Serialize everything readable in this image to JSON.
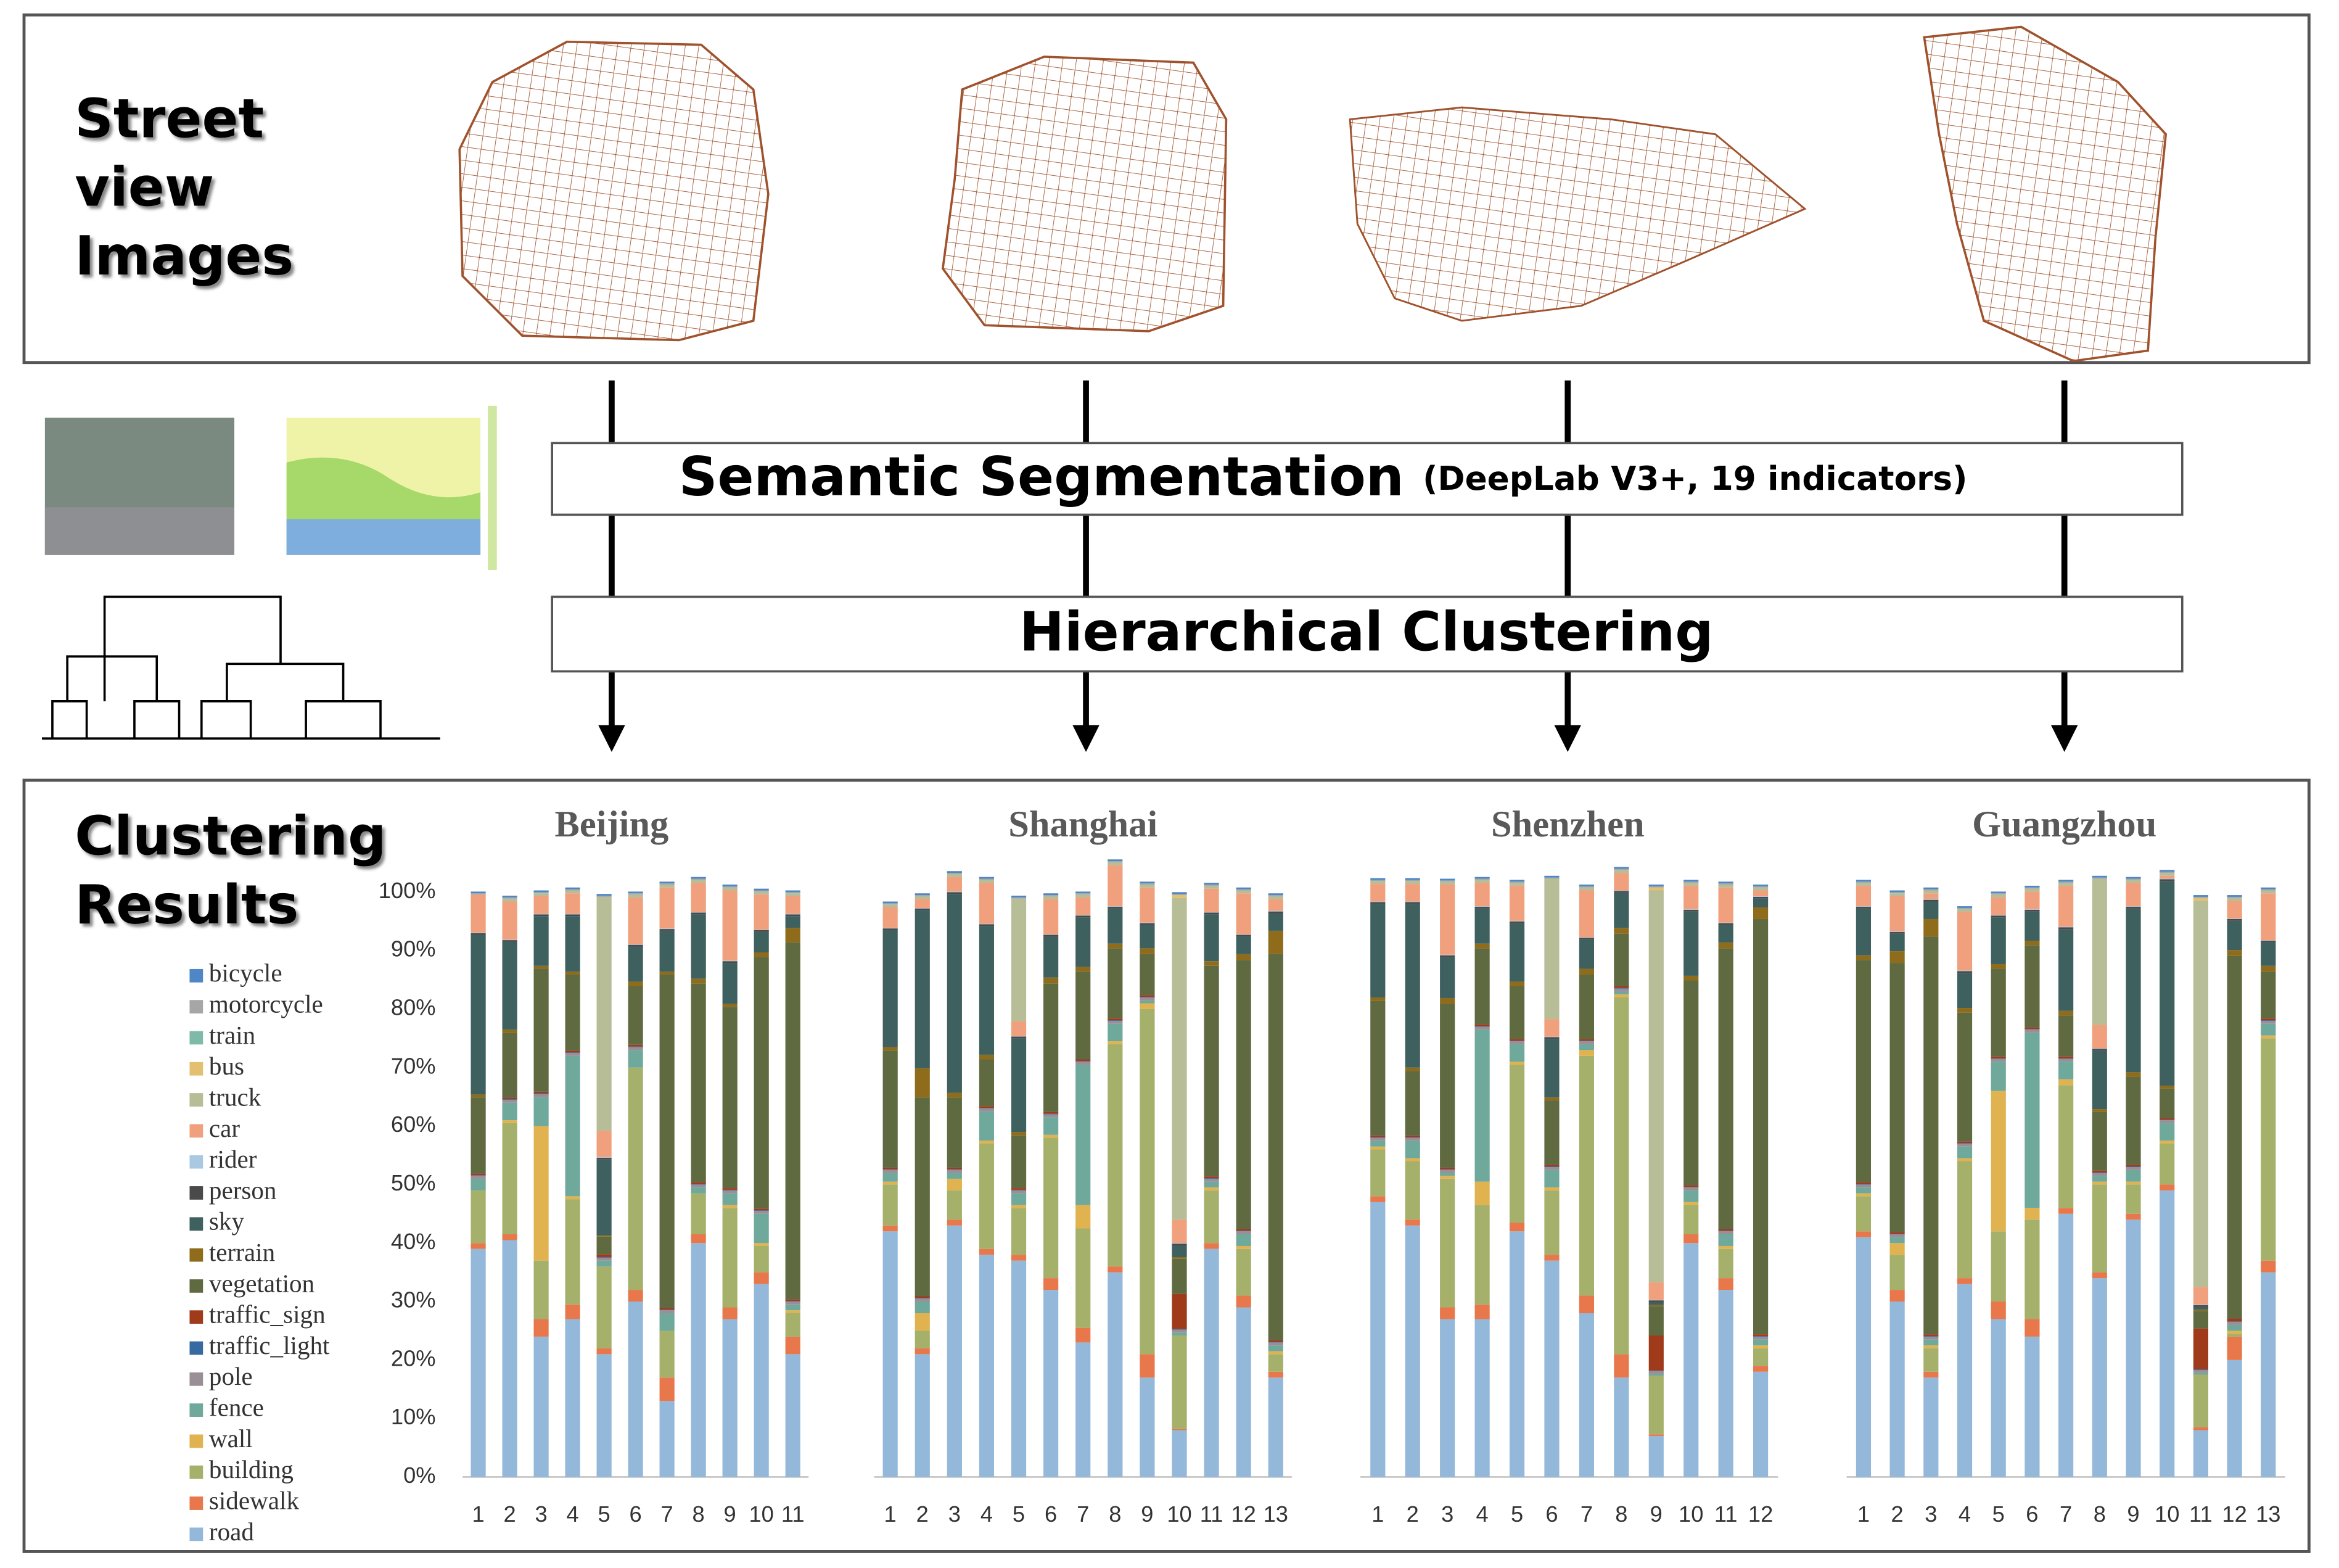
{
  "header": {
    "title": [
      "Street",
      "view",
      "Images"
    ]
  },
  "steps": [
    {
      "label": "Semantic Segmentation",
      "note": "(DeepLab V3+,  19 indicators)"
    },
    {
      "label": "Hierarchical Clustering"
    }
  ],
  "results": {
    "title": [
      "Clustering",
      "Results"
    ]
  },
  "legend": [
    {
      "name": "bicycle",
      "color": "#4f86c6"
    },
    {
      "name": "motorcycle",
      "color": "#a6a6a6"
    },
    {
      "name": "train",
      "color": "#7fb9a8"
    },
    {
      "name": "bus",
      "color": "#e3c06f"
    },
    {
      "name": "truck",
      "color": "#b6bd97"
    },
    {
      "name": "car",
      "color": "#f0a07c"
    },
    {
      "name": "rider",
      "color": "#a9c9e2"
    },
    {
      "name": "person",
      "color": "#4a4a4a"
    },
    {
      "name": "sky",
      "color": "#3e605f"
    },
    {
      "name": "terrain",
      "color": "#8e6c1c"
    },
    {
      "name": "vegetation",
      "color": "#5f6a40"
    },
    {
      "name": "traffic_sign",
      "color": "#9f3b1b"
    },
    {
      "name": "traffic_light",
      "color": "#366aa0"
    },
    {
      "name": "pole",
      "color": "#9a8f96"
    },
    {
      "name": "fence",
      "color": "#6fa99b"
    },
    {
      "name": "wall",
      "color": "#e1b350"
    },
    {
      "name": "building",
      "color": "#a5b06b"
    },
    {
      "name": "sidewalk",
      "color": "#e8784b"
    },
    {
      "name": "road",
      "color": "#94b8d9"
    }
  ],
  "yaxis": {
    "ylim": [
      0,
      100
    ],
    "yticks": [
      {
        "value": 0,
        "label": "0%"
      },
      {
        "value": 10,
        "label": "10%"
      },
      {
        "value": 20,
        "label": "20%"
      },
      {
        "value": 30,
        "label": "30%"
      },
      {
        "value": 40,
        "label": "40%"
      },
      {
        "value": 50,
        "label": "50%"
      },
      {
        "value": 60,
        "label": "60%"
      },
      {
        "value": 70,
        "label": "70%"
      },
      {
        "value": 80,
        "label": "80%"
      },
      {
        "value": 90,
        "label": "90%"
      },
      {
        "value": 100,
        "label": "100%"
      }
    ]
  },
  "chart_data": [
    {
      "type": "stacked_bar",
      "title": "Beijing",
      "categories": [
        "1",
        "2",
        "3",
        "4",
        "5",
        "6",
        "7",
        "8",
        "9",
        "10",
        "11"
      ],
      "stacks": [
        [
          0.3,
          0.2,
          0,
          0,
          0,
          6.5,
          0.1,
          0.3,
          27.3,
          0.5,
          13,
          0.3,
          0.1,
          0.5,
          2,
          0,
          9,
          1,
          39
        ],
        [
          0.3,
          0.2,
          0,
          0,
          0.5,
          6.5,
          0.1,
          0.3,
          15,
          0.6,
          11,
          0.3,
          0.1,
          0.5,
          3,
          0.5,
          19,
          1,
          40.5
        ],
        [
          0.3,
          0.2,
          0,
          0,
          0.5,
          3,
          0.1,
          0.3,
          8.5,
          0.5,
          21,
          0.3,
          0.1,
          0.5,
          5,
          23,
          10,
          3,
          24
        ],
        [
          0.3,
          0.2,
          0,
          0,
          0.5,
          3.5,
          0.1,
          0.3,
          9.5,
          0.5,
          13,
          0.3,
          0.1,
          0.5,
          24,
          0.5,
          18,
          2.5,
          27
        ],
        [
          0.3,
          0.2,
          0,
          0,
          40,
          4.5,
          0.1,
          0.3,
          13,
          0.2,
          3,
          0.5,
          0.1,
          0.5,
          1,
          0,
          14,
          1,
          21
        ],
        [
          0.3,
          0.2,
          0,
          0,
          0.5,
          8,
          0.1,
          0.3,
          6,
          0.8,
          10,
          0.3,
          0.1,
          0.5,
          3,
          0,
          38,
          2,
          30
        ],
        [
          0.3,
          0.2,
          0,
          0,
          0.5,
          7,
          0.1,
          0.3,
          7,
          0.5,
          57,
          0.3,
          0.1,
          0.5,
          3,
          0,
          8,
          4,
          13
        ],
        [
          0.3,
          0.2,
          0,
          0,
          0.5,
          5,
          0.1,
          0.3,
          11,
          0.8,
          34,
          0.3,
          0.1,
          0.5,
          1,
          0,
          7,
          1.5,
          40
        ],
        [
          0.3,
          0.2,
          0,
          0,
          0.5,
          12,
          0.1,
          0.3,
          7,
          0.5,
          31,
          0.3,
          0.1,
          0.5,
          2,
          0.5,
          17,
          2,
          27
        ],
        [
          0.3,
          0.2,
          0,
          0,
          0.5,
          6,
          0.1,
          0.3,
          3.5,
          0.8,
          43,
          0.3,
          0.1,
          0.5,
          5,
          0.5,
          4.5,
          2,
          33
        ],
        [
          0.3,
          0.2,
          0,
          0,
          0.5,
          3,
          0.1,
          0.3,
          2,
          2.5,
          61,
          0.3,
          0.1,
          0.5,
          1,
          0.5,
          4,
          3,
          21
        ]
      ]
    },
    {
      "type": "stacked_bar",
      "title": "Shanghai",
      "categories": [
        "1",
        "2",
        "3",
        "4",
        "5",
        "6",
        "7",
        "8",
        "9",
        "10",
        "11",
        "12",
        "13"
      ],
      "stacks": [
        [
          0.3,
          0.2,
          0,
          0,
          0.5,
          3.5,
          0.1,
          0.3,
          20,
          0.6,
          20,
          0.3,
          0.1,
          0.5,
          1.5,
          0.5,
          7,
          1,
          42
        ],
        [
          0.3,
          0.2,
          0,
          0,
          0.5,
          1.5,
          0.1,
          0.3,
          27,
          5,
          34,
          0.3,
          0.1,
          0.5,
          2,
          3,
          3,
          1,
          21
        ],
        [
          0.3,
          0.2,
          0,
          0,
          0.5,
          2.5,
          0.1,
          0.3,
          34,
          0.8,
          12,
          0.3,
          0.1,
          0.5,
          1,
          2,
          5,
          1,
          43
        ],
        [
          0.3,
          0.2,
          0,
          0,
          0.5,
          7,
          0.1,
          0.3,
          22,
          0.8,
          8,
          0.3,
          0.1,
          0.5,
          5,
          0.5,
          18,
          1,
          38
        ],
        [
          0.3,
          0.2,
          0,
          0,
          21,
          2.5,
          0.1,
          0.3,
          16,
          0.6,
          9,
          0.3,
          0.1,
          0.5,
          2,
          0.5,
          8,
          1,
          37
        ],
        [
          0.3,
          0.2,
          0,
          0,
          0.5,
          6,
          0.1,
          0.3,
          7,
          1,
          22,
          0.3,
          0.1,
          0.5,
          3,
          0.5,
          24,
          2,
          32
        ],
        [
          0.3,
          0.2,
          0,
          0,
          0.5,
          3,
          0.1,
          0.3,
          8.5,
          0.8,
          15,
          0.3,
          0.1,
          0.5,
          24,
          4,
          17,
          2.5,
          23
        ],
        [
          0.3,
          0.2,
          0,
          0,
          0.5,
          7,
          0.1,
          0.3,
          6,
          0.8,
          12,
          0.3,
          0.1,
          0.5,
          3,
          0.5,
          38,
          1,
          35
        ],
        [
          0.3,
          0.2,
          0,
          0,
          0.5,
          6,
          0.1,
          0.3,
          4,
          1,
          7,
          0.3,
          0.1,
          0.5,
          0.5,
          1,
          59,
          4,
          17
        ],
        [
          0.3,
          0.2,
          0,
          0.5,
          55,
          4,
          0.1,
          0.3,
          2,
          0.3,
          6,
          6,
          0.1,
          0.5,
          0.5,
          0,
          16,
          0.2,
          8
        ],
        [
          0.3,
          0.2,
          0,
          0,
          0.5,
          4,
          0.1,
          0.3,
          8,
          0.8,
          36,
          0.3,
          0.1,
          0.5,
          1,
          0.5,
          9,
          1,
          39
        ],
        [
          0.3,
          0.2,
          0,
          0,
          0.5,
          7,
          0.1,
          0.3,
          3,
          1,
          46,
          0.3,
          0.1,
          0.5,
          2,
          0.5,
          8,
          2,
          29
        ],
        [
          0.3,
          0.2,
          0,
          0,
          0.5,
          2,
          0.1,
          0.3,
          3,
          4,
          66,
          0.3,
          0.1,
          0.5,
          1,
          0.5,
          3,
          1,
          17
        ]
      ]
    },
    {
      "type": "stacked_bar",
      "title": "Shenzhen",
      "categories": [
        "1",
        "2",
        "3",
        "4",
        "5",
        "6",
        "7",
        "8",
        "9",
        "10",
        "11",
        "12"
      ],
      "stacks": [
        [
          0.3,
          0.2,
          0,
          0,
          0.5,
          3,
          0.1,
          0.3,
          16,
          0.6,
          23,
          0.3,
          0.1,
          0.5,
          1,
          0.5,
          8,
          1,
          47
        ],
        [
          0.3,
          0.2,
          0,
          0,
          0.5,
          3,
          0.1,
          0.3,
          28,
          0.6,
          11,
          0.3,
          0.1,
          0.5,
          3,
          0.5,
          10,
          1,
          43
        ],
        [
          0.3,
          0.2,
          0,
          0,
          0.5,
          12,
          0.1,
          0.3,
          7,
          1,
          28,
          0.3,
          0.1,
          0.5,
          0.5,
          0.5,
          22,
          2,
          27
        ],
        [
          0.3,
          0.2,
          0,
          0,
          0.5,
          4,
          0.1,
          0.3,
          6,
          0.8,
          13,
          0.3,
          0.1,
          0.5,
          26,
          4,
          17,
          2.5,
          27
        ],
        [
          0.3,
          0.2,
          0,
          0,
          0.5,
          6,
          0.1,
          0.3,
          10,
          0.8,
          9,
          0.3,
          0.1,
          0.5,
          3,
          0.5,
          27,
          1.5,
          42
        ],
        [
          0.3,
          0.2,
          0,
          0,
          24,
          3,
          0.1,
          0.3,
          10,
          0.5,
          11,
          0.3,
          0.1,
          0.5,
          3,
          0.5,
          11,
          1,
          37
        ],
        [
          0.3,
          0.2,
          0,
          0,
          0.5,
          8,
          0.1,
          0.3,
          5,
          1,
          11,
          0.3,
          0.1,
          0.5,
          1,
          1,
          41,
          3,
          28
        ],
        [
          0.3,
          0.2,
          0,
          0,
          0.5,
          3,
          0.1,
          0.3,
          6,
          1,
          9,
          0.3,
          0.1,
          0.5,
          0.5,
          0.5,
          61,
          4,
          17
        ],
        [
          0.3,
          0.2,
          0,
          0.5,
          67,
          3,
          0.1,
          0.3,
          0.5,
          0.2,
          5,
          6,
          0.1,
          0.5,
          0.3,
          0,
          10,
          0.3,
          7
        ],
        [
          0.3,
          0.2,
          0,
          0,
          0.5,
          4,
          0.1,
          0.3,
          11,
          0.8,
          35,
          0.3,
          0.1,
          0.5,
          2,
          0.5,
          5,
          1.5,
          40
        ],
        [
          0.3,
          0.2,
          0,
          0,
          0.5,
          6,
          0.1,
          0.3,
          3,
          1,
          48,
          0.3,
          0.1,
          0.5,
          2,
          0.5,
          5,
          2,
          32
        ],
        [
          0.3,
          0.2,
          0,
          0,
          0.5,
          1,
          0.1,
          0.3,
          1.5,
          2,
          71,
          0.3,
          0.1,
          0.5,
          1,
          0.5,
          3,
          1,
          18
        ]
      ]
    },
    {
      "type": "stacked_bar",
      "title": "Guangzhou",
      "categories": [
        "1",
        "2",
        "3",
        "4",
        "5",
        "6",
        "7",
        "8",
        "9",
        "10",
        "11",
        "12",
        "13"
      ],
      "stacks": [
        [
          0.3,
          0.2,
          0,
          0,
          0.5,
          3.5,
          0.1,
          0.3,
          8,
          0.8,
          38,
          0.3,
          0.1,
          0.5,
          1,
          0.5,
          6,
          1,
          41
        ],
        [
          0.3,
          0.2,
          0,
          0,
          0.5,
          6,
          0.1,
          0.3,
          3,
          2,
          46,
          0.3,
          0.1,
          0.5,
          1,
          2,
          6,
          2,
          30
        ],
        [
          0.3,
          0.2,
          0,
          0,
          0.5,
          1,
          0.1,
          0.3,
          3,
          3,
          68,
          0.3,
          0.1,
          0.5,
          1,
          0.5,
          4,
          1,
          17
        ],
        [
          0.3,
          0.2,
          0,
          0,
          0.5,
          10,
          0.1,
          0.3,
          6,
          0.8,
          22,
          0.3,
          0.1,
          0.5,
          2,
          0.5,
          20,
          1,
          33
        ],
        [
          0.3,
          0.2,
          0,
          0,
          0.5,
          3,
          0.1,
          0.3,
          8,
          0.8,
          15,
          0.3,
          0.1,
          0.5,
          5,
          24,
          12,
          3,
          27
        ],
        [
          0.3,
          0.2,
          0,
          0,
          0.5,
          3,
          0.1,
          0.3,
          5,
          0.8,
          14,
          0.3,
          0.1,
          0.5,
          30,
          2,
          17,
          3,
          24
        ],
        [
          0.3,
          0.2,
          0,
          0,
          0.5,
          7,
          0.1,
          0.3,
          14,
          0.8,
          7,
          0.3,
          0.1,
          0.5,
          3,
          1,
          21,
          1,
          45
        ],
        [
          0.3,
          0.2,
          0,
          0,
          25,
          4,
          0.1,
          0.3,
          10,
          0.5,
          10,
          0.3,
          0.1,
          0.5,
          1,
          0.5,
          15,
          1,
          34
        ],
        [
          0.3,
          0.2,
          0,
          0,
          0.5,
          4,
          0.1,
          0.3,
          28,
          0.8,
          15,
          0.3,
          0.1,
          0.5,
          2,
          0.5,
          5,
          1,
          44
        ],
        [
          0.3,
          0.2,
          0,
          0,
          0.5,
          0.5,
          0.1,
          0.3,
          35,
          0.5,
          5,
          0.3,
          0.1,
          0.5,
          3,
          0.5,
          7,
          1,
          49
        ],
        [
          0.3,
          0.2,
          0,
          0.5,
          66,
          3,
          0.1,
          0.3,
          0.5,
          0.2,
          3,
          7,
          0.1,
          0.5,
          0.3,
          0,
          9,
          0.5,
          8
        ],
        [
          0.3,
          0.2,
          0,
          0,
          0.5,
          3,
          0.1,
          0.3,
          5,
          1,
          62,
          0.5,
          0.1,
          0.5,
          1,
          0.5,
          0.5,
          4,
          20
        ],
        [
          0.3,
          0.2,
          0,
          0,
          0.5,
          8,
          0.1,
          0.3,
          4,
          1,
          8,
          0.3,
          0.1,
          0.5,
          2,
          0.5,
          38,
          2,
          35
        ]
      ]
    }
  ]
}
